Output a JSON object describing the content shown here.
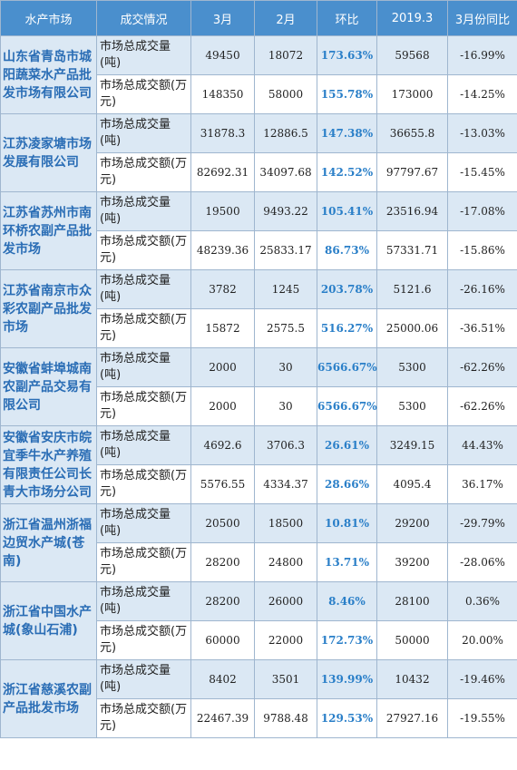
{
  "headers": [
    "水产市场",
    "成交情况",
    "3月",
    "2月",
    "环比",
    "2019.3",
    "3月份同比"
  ],
  "markets": [
    {
      "name": "山东省青岛市城阳蔬菜水产品批发市场有限公司",
      "rows": [
        {
          "metric": "市场总成交量(吨)",
          "mar": "49450",
          "feb": "18072",
          "mom": "173.63%",
          "y2019": "59568",
          "yoy": "-16.99%"
        },
        {
          "metric": "市场总成交额(万元)",
          "mar": "148350",
          "feb": "58000",
          "mom": "155.78%",
          "y2019": "173000",
          "yoy": "-14.25%"
        }
      ]
    },
    {
      "name": "江苏凌家塘市场发展有限公司",
      "rows": [
        {
          "metric": "市场总成交量(吨)",
          "mar": "31878.3",
          "feb": "12886.5",
          "mom": "147.38%",
          "y2019": "36655.8",
          "yoy": "-13.03%"
        },
        {
          "metric": "市场总成交额(万元)",
          "mar": "82692.31",
          "feb": "34097.68",
          "mom": "142.52%",
          "y2019": "97797.67",
          "yoy": "-15.45%"
        }
      ]
    },
    {
      "name": "江苏省苏州市南环桥农副产品批发市场",
      "rows": [
        {
          "metric": "市场总成交量(吨)",
          "mar": "19500",
          "feb": "9493.22",
          "mom": "105.41%",
          "y2019": "23516.94",
          "yoy": "-17.08%"
        },
        {
          "metric": "市场总成交额(万元)",
          "mar": "48239.36",
          "feb": "25833.17",
          "mom": "86.73%",
          "y2019": "57331.71",
          "yoy": "-15.86%"
        }
      ]
    },
    {
      "name": "江苏省南京市众彩农副产品批发市场",
      "rows": [
        {
          "metric": "市场总成交量(吨)",
          "mar": "3782",
          "feb": "1245",
          "mom": "203.78%",
          "y2019": "5121.6",
          "yoy": "-26.16%"
        },
        {
          "metric": "市场总成交额(万元)",
          "mar": "15872",
          "feb": "2575.5",
          "mom": "516.27%",
          "y2019": "25000.06",
          "yoy": "-36.51%"
        }
      ]
    },
    {
      "name": "安徽省蚌埠城南农副产品交易有限公司",
      "rows": [
        {
          "metric": "市场总成交量(吨)",
          "mar": "2000",
          "feb": "30",
          "mom": "6566.67%",
          "y2019": "5300",
          "yoy": "-62.26%"
        },
        {
          "metric": "市场总成交额(万元)",
          "mar": "2000",
          "feb": "30",
          "mom": "6566.67%",
          "y2019": "5300",
          "yoy": "-62.26%"
        }
      ]
    },
    {
      "name": "安徽省安庆市皖宜季牛水产养殖有限责任公司长青大市场分公司",
      "rows": [
        {
          "metric": "市场总成交量(吨)",
          "mar": "4692.6",
          "feb": "3706.3",
          "mom": "26.61%",
          "y2019": "3249.15",
          "yoy": "44.43%"
        },
        {
          "metric": "市场总成交额(万元)",
          "mar": "5576.55",
          "feb": "4334.37",
          "mom": "28.66%",
          "y2019": "4095.4",
          "yoy": "36.17%"
        }
      ]
    },
    {
      "name": "浙江省温州浙福边贸水产城(苍南)",
      "rows": [
        {
          "metric": "市场总成交量(吨)",
          "mar": "20500",
          "feb": "18500",
          "mom": "10.81%",
          "y2019": "29200",
          "yoy": "-29.79%"
        },
        {
          "metric": "市场总成交额(万元)",
          "mar": "28200",
          "feb": "24800",
          "mom": "13.71%",
          "y2019": "39200",
          "yoy": "-28.06%"
        }
      ]
    },
    {
      "name": "浙江省中国水产城(象山石浦)",
      "rows": [
        {
          "metric": "市场总成交量(吨)",
          "mar": "28200",
          "feb": "26000",
          "mom": "8.46%",
          "y2019": "28100",
          "yoy": "0.36%"
        },
        {
          "metric": "市场总成交额(万元)",
          "mar": "60000",
          "feb": "22000",
          "mom": "172.73%",
          "y2019": "50000",
          "yoy": "20.00%"
        }
      ]
    },
    {
      "name": "浙江省慈溪农副产品批发市场",
      "rows": [
        {
          "metric": "市场总成交量(吨)",
          "mar": "8402",
          "feb": "3501",
          "mom": "139.99%",
          "y2019": "10432",
          "yoy": "-19.46%"
        },
        {
          "metric": "市场总成交额(万元)",
          "mar": "22467.39",
          "feb": "9788.48",
          "mom": "129.53%",
          "y2019": "27927.16",
          "yoy": "-19.55%"
        }
      ]
    }
  ]
}
